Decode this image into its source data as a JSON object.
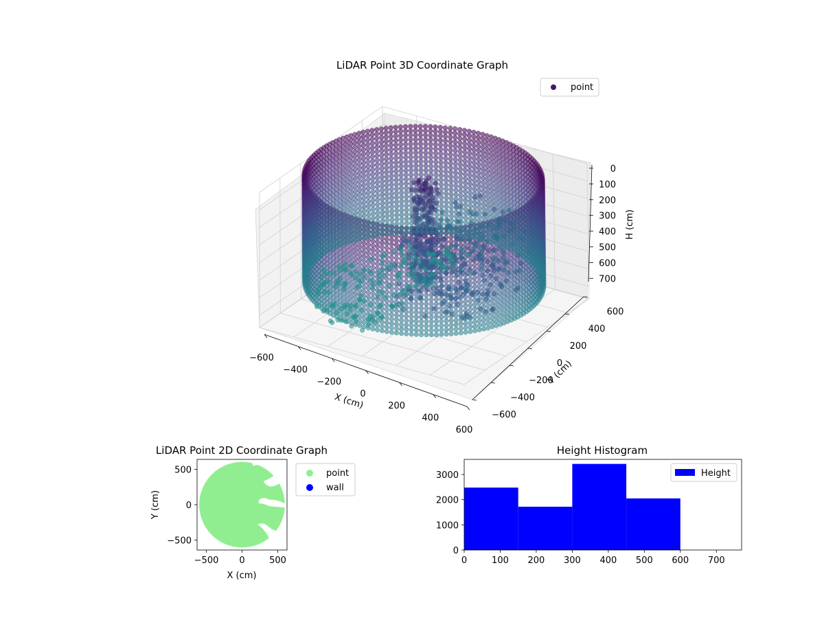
{
  "chart_data": [
    {
      "type": "scatter3d",
      "title": "LiDAR Point 3D Coordinate Graph",
      "xlabel": "X (cm)",
      "ylabel": "Y (cm)",
      "zlabel": "H (cm)",
      "xlim": [
        -600,
        600
      ],
      "ylim": [
        -600,
        600
      ],
      "zlim": [
        0,
        770
      ],
      "z_inverted": true,
      "x_ticks": [
        "−600",
        "−400",
        "−200",
        "0",
        "200",
        "400",
        "600"
      ],
      "y_ticks": [
        "−600",
        "−400",
        "−200",
        "0",
        "200",
        "400",
        "600"
      ],
      "z_ticks": [
        "0",
        "100",
        "200",
        "300",
        "400",
        "500",
        "600",
        "700"
      ],
      "legend": {
        "entries": [
          {
            "label": "point",
            "color": "#46166b"
          }
        ],
        "position": "top-right"
      },
      "colormap": "viridis",
      "ring_radius": 600,
      "ring_height_range": [
        0,
        600
      ],
      "grid": true
    },
    {
      "type": "scatter",
      "title": "LiDAR Point 2D Coordinate Graph",
      "xlabel": "X (cm)",
      "ylabel": "Y (cm)",
      "xlim": [
        -630,
        630
      ],
      "ylim": [
        -640,
        640
      ],
      "x_ticks": [
        "−500",
        "0",
        "500"
      ],
      "x_tick_values": [
        -500,
        0,
        500
      ],
      "y_ticks": [
        "500",
        "0",
        "−500"
      ],
      "y_tick_values": [
        500,
        0,
        -500
      ],
      "series": [
        {
          "name": "point",
          "color": "#90ee90",
          "shape": "filled disc radius 600 cm with openings on the right"
        },
        {
          "name": "wall",
          "color": "#0000ff"
        }
      ],
      "legend_position": "outside-right",
      "grid": false
    },
    {
      "type": "bar",
      "subtype": "histogram",
      "title": "Height Histogram",
      "xlim": [
        0,
        770
      ],
      "ylim": [
        0,
        3600
      ],
      "x_ticks": [
        0,
        100,
        200,
        300,
        400,
        500,
        600,
        700
      ],
      "y_ticks": [
        0,
        1000,
        2000,
        3000
      ],
      "bins": [
        {
          "start": 0,
          "end": 150,
          "count": 2480
        },
        {
          "start": 150,
          "end": 300,
          "count": 1720
        },
        {
          "start": 300,
          "end": 450,
          "count": 3420
        },
        {
          "start": 450,
          "end": 600,
          "count": 2050
        }
      ],
      "series": [
        {
          "name": "Height",
          "color": "#0000ff"
        }
      ],
      "legend_position": "top-right",
      "grid": false
    }
  ]
}
